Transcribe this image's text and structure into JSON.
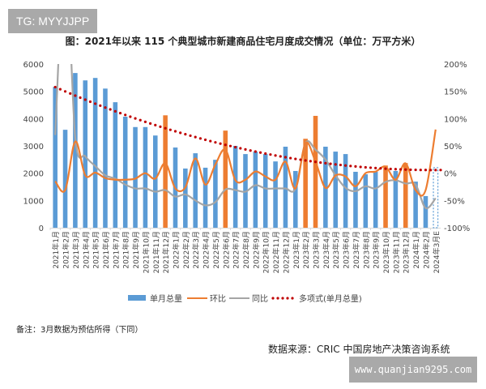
{
  "watermark_top": "TG: MYYJJPP",
  "watermark_bottom": "www.quanjian9295.com",
  "note": "备注：3月数据为预估所得（下同）",
  "source": "数据来源：CRIC 中国房地产决策咨询系统",
  "colors": {
    "bar": "#5b9bd5",
    "highlight": "#ed7d31",
    "mom": "#ed7d31",
    "yoy": "#a5a5a5",
    "trend": "#c00000"
  },
  "chart_data": {
    "type": "bar",
    "title": "图：2021年以来 115 个典型城市新建商品住宅月度成交情况（单位：万平方米）",
    "categories": [
      "2021年1月",
      "2021年2月",
      "2021年3月",
      "2021年4月",
      "2021年5月",
      "2021年6月",
      "2021年7月",
      "2021年8月",
      "2021年9月",
      "2021年10月",
      "2021年11月",
      "2021年12月",
      "2022年1月",
      "2022年2月",
      "2022年3月",
      "2022年4月",
      "2022年5月",
      "2022年6月",
      "2022年7月",
      "2022年8月",
      "2022年9月",
      "2022年10月",
      "2022年11月",
      "2022年12月",
      "2023年1月",
      "2023年2月",
      "2023年3月",
      "2023年4月",
      "2023年5月",
      "2023年6月",
      "2023年7月",
      "2023年8月",
      "2023年9月",
      "2023年10月",
      "2023年11月",
      "2023年12月",
      "2024年1月",
      "2024年2月",
      "2024年3月E"
    ],
    "yticks_left": [
      "0",
      "1000",
      "2000",
      "3000",
      "4000",
      "5000",
      "6000"
    ],
    "yticks_right": [
      "-100%",
      "-50%",
      "0%",
      "50%",
      "100%",
      "150%",
      "200%"
    ],
    "ylim_left": [
      0,
      6000
    ],
    "ylim_right": [
      -100,
      200
    ],
    "highlighted_categories": [
      "2021年12月",
      "2022年6月",
      "2023年2月",
      "2023年3月",
      "2023年10月",
      "2023年12月"
    ],
    "estimated_category": "2024年3月E",
    "legend_position": "bottom",
    "series": [
      {
        "name": "单月总量",
        "type": "bar",
        "axis": "left",
        "values": [
          5160,
          3590,
          5670,
          5400,
          5490,
          5100,
          4600,
          4070,
          3690,
          3690,
          3380,
          4120,
          2940,
          2170,
          2730,
          2200,
          2490,
          3560,
          3000,
          2700,
          2790,
          2700,
          2430,
          2970,
          2080,
          3260,
          4100,
          2970,
          2790,
          2700,
          2050,
          1960,
          2050,
          2280,
          2080,
          2370,
          1690,
          1160,
          2200
        ]
      },
      {
        "name": "环比",
        "type": "line",
        "axis": "right",
        "unit": "%",
        "values": [
          -15,
          -31,
          58,
          -4,
          1,
          -9,
          -12,
          -12,
          -10,
          0,
          -10,
          18,
          -28,
          -26,
          27,
          -21,
          16,
          43,
          -13,
          -12,
          3,
          -6,
          -12,
          21,
          -28,
          55,
          21,
          -27,
          -4,
          -6,
          -24,
          0,
          3,
          12,
          -12,
          18,
          -31,
          -31,
          80
        ]
      },
      {
        "name": "同比",
        "type": "line",
        "axis": "right",
        "unit": "%",
        "values": [
          70,
          400,
          65,
          31,
          13,
          -4,
          -10,
          -21,
          -28,
          -28,
          -34,
          -31,
          -43,
          -39,
          -50,
          -59,
          -53,
          -30,
          -31,
          -34,
          -22,
          -28,
          -28,
          -28,
          -28,
          55,
          43,
          25,
          -4,
          -27,
          -33,
          -24,
          -28,
          -16,
          -13,
          -19,
          -21,
          -64,
          -46
        ]
      },
      {
        "name": "多项式(单月总量)",
        "type": "trendline",
        "axis": "left",
        "of": "单月总量"
      }
    ]
  }
}
